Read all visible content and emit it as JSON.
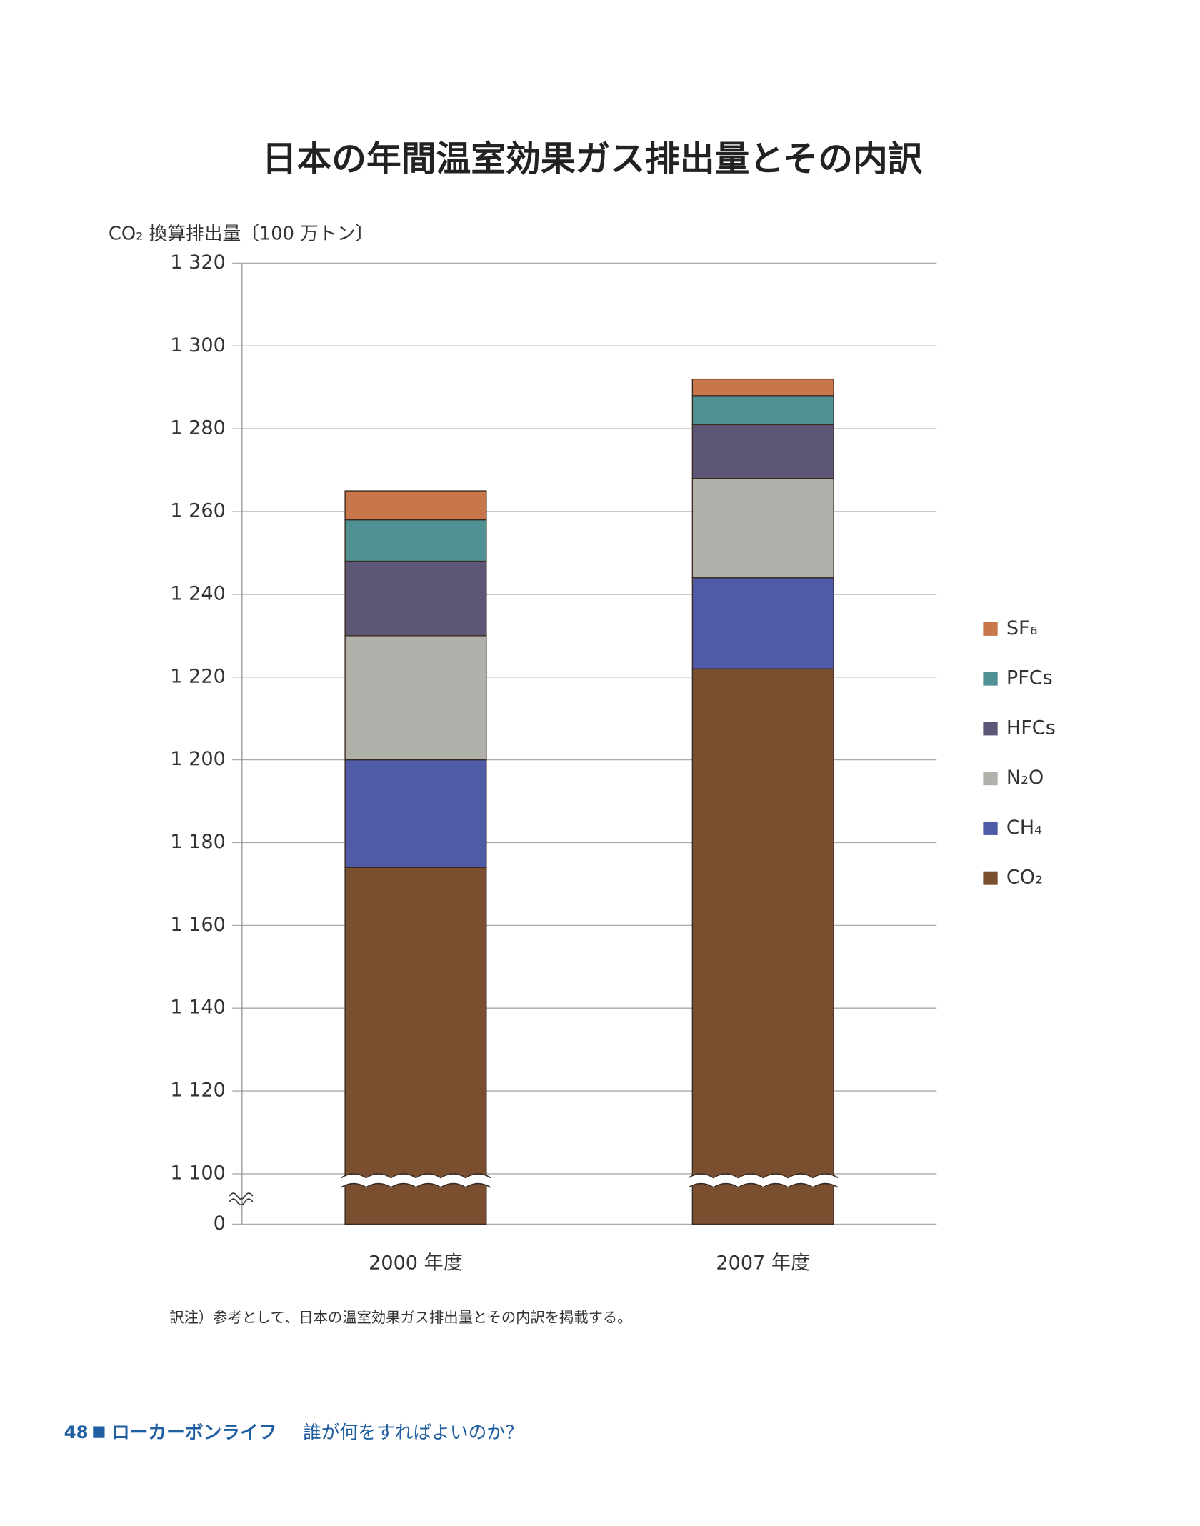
{
  "chart_data": {
    "type": "stacked-bar",
    "title": "日本の年間温室効果ガス排出量とその内訳",
    "y_label": "CO₂ 換算排出量〔100 万トン〕",
    "categories": [
      "2000 年度",
      "2007 年度"
    ],
    "series": [
      {
        "name": "CO₂",
        "color": "#7a4f2f",
        "values": [
          1174,
          1222
        ]
      },
      {
        "name": "CH₄",
        "color": "#4f5ba6",
        "values": [
          26,
          22
        ]
      },
      {
        "name": "N₂O",
        "color": "#b1b1ab",
        "values": [
          30,
          24
        ]
      },
      {
        "name": "HFCs",
        "color": "#5e5677",
        "values": [
          18,
          13
        ]
      },
      {
        "name": "PFCs",
        "color": "#4f9193",
        "values": [
          10,
          7
        ]
      },
      {
        "name": "SF₆",
        "color": "#c8774b",
        "values": [
          7,
          4
        ]
      }
    ],
    "ylim": [
      0,
      1320
    ],
    "y_break": [
      0,
      1100
    ],
    "yticks": [
      0,
      {
        "value": 1100,
        "label": "1 100"
      },
      {
        "value": 1120,
        "label": "1 120"
      },
      {
        "value": 1140,
        "label": "1 140"
      },
      {
        "value": 1160,
        "label": "1 160"
      },
      {
        "value": 1180,
        "label": "1 180"
      },
      {
        "value": 1200,
        "label": "1 200"
      },
      {
        "value": 1220,
        "label": "1 220"
      },
      {
        "value": 1240,
        "label": "1 240"
      },
      {
        "value": 1260,
        "label": "1 260"
      },
      {
        "value": 1280,
        "label": "1 280"
      },
      {
        "value": 1300,
        "label": "1 300"
      },
      {
        "value": 1320,
        "label": "1 320"
      }
    ],
    "grid": true,
    "legend": "right"
  },
  "footnote": "訳注）参考として、日本の温室効果ガス排出量とその内訳を掲載する。",
  "footer": {
    "page": "48",
    "book": "ローカーボンライフ",
    "subtitle": "誰が何をすればよいのか？"
  }
}
